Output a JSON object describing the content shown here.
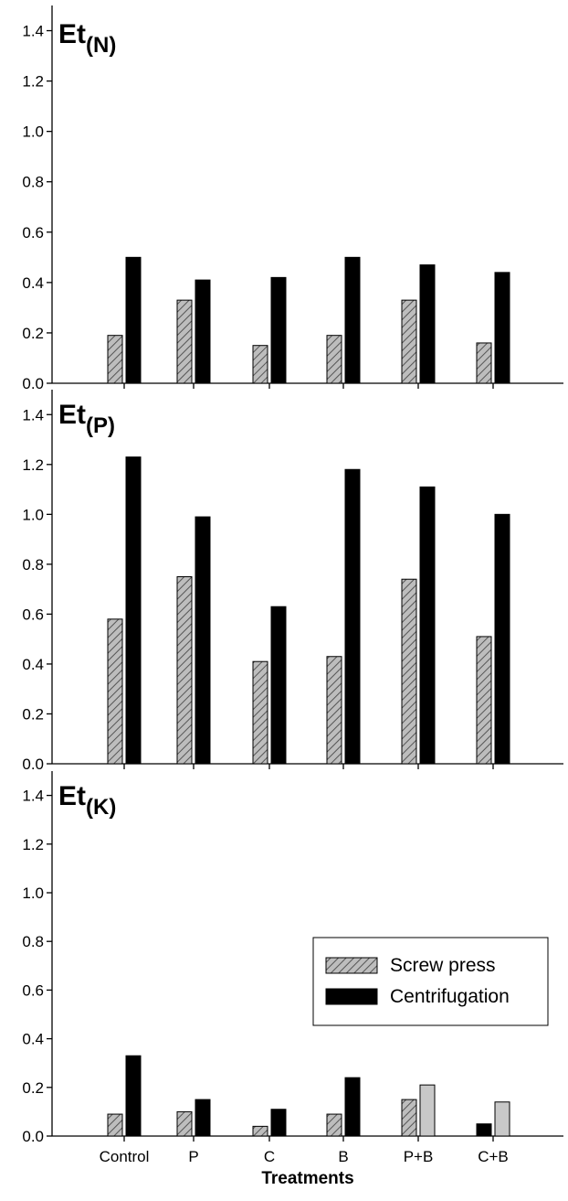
{
  "chart_data": [
    {
      "type": "bar",
      "title": "Et",
      "title_subscript": "(N)",
      "categories": [
        "Control",
        "P",
        "C",
        "B",
        "P+B",
        "C+B"
      ],
      "ylim": [
        0,
        1.5
      ],
      "yticks": [
        "0.0",
        "0.2",
        "0.4",
        "0.6",
        "0.8",
        "1.0",
        "1.2",
        "1.4"
      ],
      "series": [
        {
          "name": "Screw press",
          "values": [
            0.19,
            0.33,
            0.15,
            0.19,
            0.33,
            0.16
          ],
          "fill": "hatched",
          "color": "#bdbdbd"
        },
        {
          "name": "Centrifugation",
          "values": [
            0.5,
            0.41,
            0.42,
            0.5,
            0.47,
            0.44
          ],
          "fill": "solid",
          "color": "#000000"
        }
      ]
    },
    {
      "type": "bar",
      "title": "Et",
      "title_subscript": "(P)",
      "categories": [
        "Control",
        "P",
        "C",
        "B",
        "P+B",
        "C+B"
      ],
      "ylim": [
        0,
        1.5
      ],
      "yticks": [
        "0.0",
        "0.2",
        "0.4",
        "0.6",
        "0.8",
        "1.0",
        "1.2",
        "1.4"
      ],
      "series": [
        {
          "name": "Screw press",
          "values": [
            0.58,
            0.75,
            0.41,
            0.43,
            0.74,
            0.51
          ],
          "fill": "hatched",
          "color": "#bdbdbd"
        },
        {
          "name": "Centrifugation",
          "values": [
            1.23,
            0.99,
            0.63,
            1.18,
            1.11,
            1.0
          ],
          "fill": "solid",
          "color": "#000000"
        }
      ]
    },
    {
      "type": "bar",
      "title": "Et",
      "title_subscript": "(K)",
      "categories": [
        "Control",
        "P",
        "C",
        "B",
        "P+B",
        "C+B"
      ],
      "ylim": [
        0,
        1.5
      ],
      "yticks": [
        "0.0",
        "0.2",
        "0.4",
        "0.6",
        "0.8",
        "1.0",
        "1.2",
        "1.4"
      ],
      "xlabel": "Treatments",
      "legend": {
        "position": "center-right",
        "entries": [
          "Screw press",
          "Centrifugation"
        ]
      },
      "series": [
        {
          "name": "Screw press",
          "values": [
            0.09,
            0.1,
            0.04,
            0.09,
            0.15,
            0.05
          ],
          "fill": "hatched",
          "color": "#bdbdbd"
        },
        {
          "name": "Centrifugation",
          "values": [
            0.33,
            0.15,
            0.11,
            0.24,
            0.21,
            0.14
          ],
          "fill": "solid",
          "color": "#000000"
        }
      ],
      "bar_color_overrides": [
        {
          "series": 0,
          "index": 5,
          "fill": "solid",
          "color": "#000000"
        },
        {
          "series": 1,
          "index": 4,
          "fill": "solid",
          "color": "#c8c8c8"
        },
        {
          "series": 1,
          "index": 5,
          "fill": "solid",
          "color": "#c8c8c8"
        }
      ]
    }
  ],
  "colors": {
    "hatch_background": "#bdbdbd",
    "hatch_line": "#555555",
    "solid": "#000000",
    "light_bar": "#c8c8c8"
  }
}
